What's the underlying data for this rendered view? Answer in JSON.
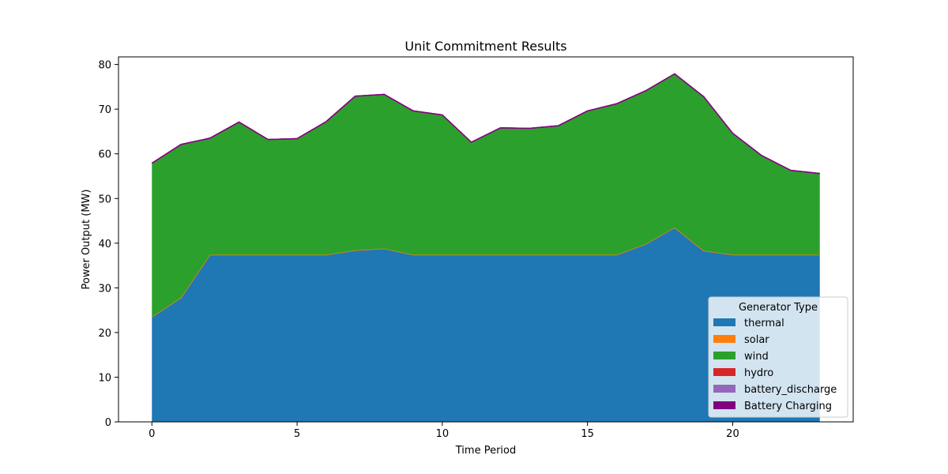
{
  "chart_data": {
    "type": "area",
    "title": "Unit Commitment Results",
    "xlabel": "Time Period",
    "ylabel": "Power Output (MW)",
    "xlim": [
      -1.15,
      24.15
    ],
    "ylim": [
      0,
      81.7
    ],
    "x_ticks": [
      0,
      5,
      10,
      15,
      20
    ],
    "y_ticks": [
      0,
      10,
      20,
      30,
      40,
      50,
      60,
      70,
      80
    ],
    "grid": false,
    "legend_title": "Generator Type",
    "legend_position": "lower-right",
    "x": [
      0,
      1,
      2,
      3,
      4,
      5,
      6,
      7,
      8,
      9,
      10,
      11,
      12,
      13,
      14,
      15,
      16,
      17,
      18,
      19,
      20,
      21,
      22,
      23
    ],
    "series": [
      {
        "name": "thermal",
        "color": "#1f77b4",
        "values": [
          23.5,
          27.8,
          37.4,
          37.4,
          37.4,
          37.4,
          37.4,
          38.4,
          38.8,
          37.4,
          37.4,
          37.4,
          37.4,
          37.4,
          37.4,
          37.4,
          37.4,
          39.8,
          43.5,
          38.3,
          37.4,
          37.4,
          37.4,
          37.4
        ]
      },
      {
        "name": "solar",
        "color": "#ff7f0e",
        "values": [
          0,
          0,
          0,
          0,
          0,
          0,
          0,
          0,
          0,
          0,
          0,
          0,
          0,
          0,
          0,
          0,
          0,
          0,
          0,
          0,
          0,
          0,
          0,
          0
        ]
      },
      {
        "name": "wind",
        "color": "#2ca02c",
        "values": [
          34.4,
          34.3,
          26.1,
          29.7,
          25.8,
          26.0,
          29.8,
          34.5,
          34.5,
          32.2,
          31.3,
          25.2,
          28.4,
          28.3,
          28.9,
          32.2,
          33.8,
          34.3,
          34.4,
          34.5,
          27.2,
          22.2,
          18.9,
          18.2
        ]
      },
      {
        "name": "hydro",
        "color": "#d62728",
        "values": [
          0,
          0,
          0,
          0,
          0,
          0,
          0,
          0,
          0,
          0,
          0,
          0,
          0,
          0,
          0,
          0,
          0,
          0,
          0,
          0,
          0,
          0,
          0,
          0
        ]
      },
      {
        "name": "battery_discharge",
        "color": "#9467bd",
        "values": [
          0,
          0,
          0,
          0,
          0,
          0,
          0,
          0,
          0,
          0,
          0,
          0,
          0,
          0,
          0,
          0,
          0,
          0,
          0,
          0,
          0,
          0,
          0,
          0
        ]
      },
      {
        "name": "Battery Charging",
        "color": "#800080",
        "values": [
          0,
          0,
          0,
          0,
          0,
          0,
          0,
          0,
          0,
          0,
          0,
          0,
          0,
          0,
          0,
          0,
          0,
          0,
          0,
          0,
          0,
          0,
          0,
          0
        ]
      }
    ]
  }
}
